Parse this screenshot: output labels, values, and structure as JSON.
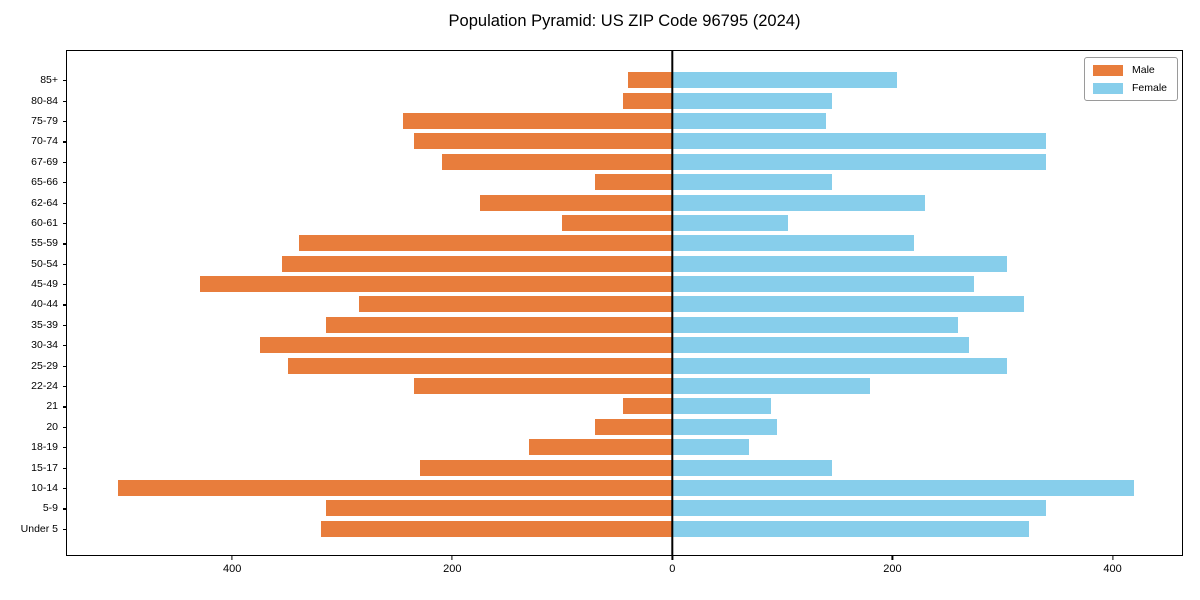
{
  "title": "Population Pyramid: US ZIP Code 96795 (2024)",
  "legend": {
    "male_label": "Male",
    "female_label": "Female"
  },
  "colors": {
    "male": "#e87d3c",
    "female": "#87ceeb",
    "axis": "#000000",
    "background": "#ffffff"
  },
  "chart_data": {
    "type": "bar",
    "subtype": "population-pyramid",
    "title": "Population Pyramid: US ZIP Code 96795 (2024)",
    "categories": [
      "85+",
      "80-84",
      "75-79",
      "70-74",
      "67-69",
      "65-66",
      "62-64",
      "60-61",
      "55-59",
      "50-54",
      "45-49",
      "40-44",
      "35-39",
      "30-34",
      "25-29",
      "22-24",
      "21",
      "20",
      "18-19",
      "15-17",
      "10-14",
      "5-9",
      "Under 5"
    ],
    "series": [
      {
        "name": "Male",
        "side": "left",
        "color": "#e87d3c",
        "values": [
          40,
          45,
          245,
          235,
          210,
          70,
          175,
          100,
          340,
          355,
          430,
          285,
          315,
          375,
          350,
          235,
          45,
          70,
          130,
          230,
          505,
          315,
          320
        ]
      },
      {
        "name": "Female",
        "side": "right",
        "color": "#87ceeb",
        "values": [
          205,
          145,
          140,
          340,
          340,
          145,
          230,
          105,
          220,
          305,
          275,
          320,
          260,
          270,
          305,
          180,
          90,
          95,
          70,
          145,
          420,
          340,
          325
        ]
      }
    ],
    "x_axis": {
      "min": -551,
      "max": 464,
      "ticks": [
        -400,
        -200,
        0,
        200,
        400
      ],
      "tick_labels": [
        "400",
        "200",
        "0",
        "200",
        "400"
      ]
    },
    "y_axis": {
      "label": "",
      "categories_top_to_bottom": true
    },
    "grid": false,
    "legend_position": "upper right"
  }
}
